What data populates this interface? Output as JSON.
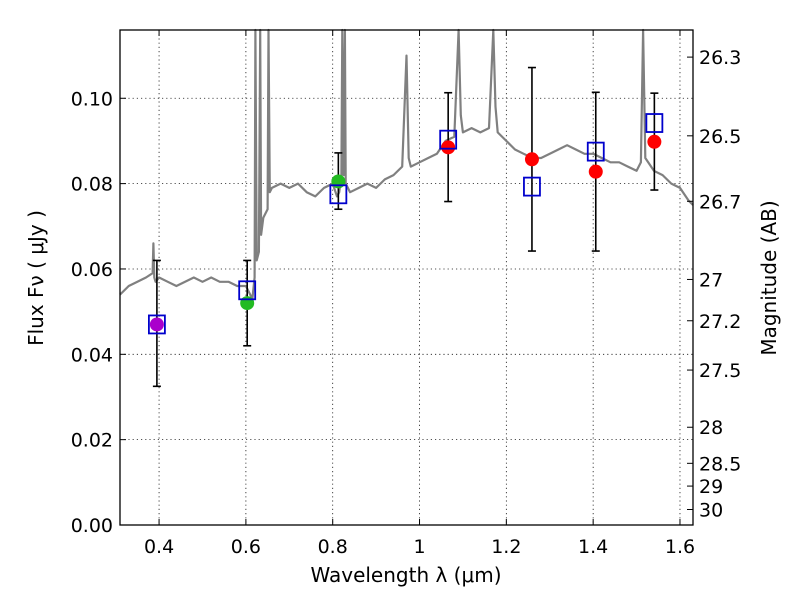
{
  "chart_data": {
    "type": "scatter",
    "title": "",
    "xlabel": "Wavelength  λ (μm)",
    "ylabel_left": "Flux  Fν  ( μJy )",
    "ylabel_right": "Magnitude (AB)",
    "xlim": [
      0.31,
      1.63
    ],
    "ylim": [
      0.0,
      0.116
    ],
    "grid": true,
    "x_ticks": [
      0.4,
      0.6,
      0.8,
      1.0,
      1.2,
      1.4,
      1.6
    ],
    "x_tick_labels": [
      "0.4",
      "0.6",
      "0.8",
      "1",
      "1.2",
      "1.4",
      "1.6"
    ],
    "y_ticks": [
      0.0,
      0.02,
      0.04,
      0.06,
      0.08,
      0.1
    ],
    "y_tick_labels": [
      "0.00",
      "0.02",
      "0.04",
      "0.06",
      "0.08",
      "0.10"
    ],
    "magnitude_ticks": [
      "26.3",
      "26.5",
      "26.7",
      "27",
      "27.2",
      "27.5",
      "28",
      "28.5",
      "29",
      "30"
    ],
    "model_spectrum": {
      "name": "model spectrum",
      "color": "#808080",
      "x": [
        0.31,
        0.33,
        0.35,
        0.37,
        0.385,
        0.387,
        0.389,
        0.392,
        0.4,
        0.42,
        0.44,
        0.46,
        0.48,
        0.5,
        0.52,
        0.54,
        0.56,
        0.58,
        0.6,
        0.61,
        0.615,
        0.62,
        0.622,
        0.625,
        0.63,
        0.633,
        0.635,
        0.64,
        0.65,
        0.652,
        0.655,
        0.66,
        0.68,
        0.7,
        0.72,
        0.74,
        0.76,
        0.78,
        0.8,
        0.81,
        0.815,
        0.82,
        0.822,
        0.825,
        0.828,
        0.83,
        0.84,
        0.86,
        0.88,
        0.9,
        0.92,
        0.94,
        0.96,
        0.97,
        0.975,
        0.98,
        1.0,
        1.02,
        1.04,
        1.06,
        1.08,
        1.09,
        1.095,
        1.1,
        1.12,
        1.14,
        1.16,
        1.17,
        1.175,
        1.18,
        1.2,
        1.22,
        1.24,
        1.26,
        1.28,
        1.3,
        1.32,
        1.34,
        1.36,
        1.38,
        1.4,
        1.42,
        1.44,
        1.46,
        1.48,
        1.5,
        1.51,
        1.515,
        1.52,
        1.54,
        1.56,
        1.58,
        1.6,
        1.62,
        1.63
      ],
      "y": [
        0.054,
        0.056,
        0.057,
        0.058,
        0.059,
        0.066,
        0.058,
        0.057,
        0.058,
        0.057,
        0.056,
        0.057,
        0.058,
        0.057,
        0.058,
        0.057,
        0.057,
        0.056,
        0.056,
        0.054,
        0.053,
        0.058,
        0.116,
        0.062,
        0.064,
        0.116,
        0.068,
        0.072,
        0.074,
        0.116,
        0.078,
        0.079,
        0.08,
        0.079,
        0.08,
        0.078,
        0.077,
        0.079,
        0.08,
        0.077,
        0.078,
        0.082,
        0.116,
        0.082,
        0.116,
        0.08,
        0.078,
        0.079,
        0.08,
        0.079,
        0.081,
        0.082,
        0.084,
        0.11,
        0.086,
        0.084,
        0.085,
        0.086,
        0.087,
        0.09,
        0.091,
        0.116,
        0.096,
        0.092,
        0.093,
        0.092,
        0.093,
        0.116,
        0.098,
        0.092,
        0.09,
        0.088,
        0.087,
        0.086,
        0.086,
        0.087,
        0.088,
        0.089,
        0.088,
        0.087,
        0.087,
        0.086,
        0.085,
        0.085,
        0.084,
        0.083,
        0.085,
        0.116,
        0.086,
        0.083,
        0.082,
        0.08,
        0.079,
        0.076,
        0.075
      ]
    },
    "filters": [
      {
        "x": 0.395,
        "observed": 0.047,
        "err_low": 0.0325,
        "err_high": 0.062,
        "model": 0.047,
        "color": "#aa00cc"
      },
      {
        "x": 0.603,
        "observed": 0.052,
        "err_low": 0.042,
        "err_high": 0.062,
        "model": 0.055,
        "color": "#22bb22"
      },
      {
        "x": 0.813,
        "observed": 0.0805,
        "err_low": 0.074,
        "err_high": 0.0872,
        "model": 0.0775,
        "color": "#22bb22"
      },
      {
        "x": 1.066,
        "observed": 0.0885,
        "err_low": 0.0758,
        "err_high": 0.1013,
        "model": 0.0903,
        "color": "#ff0000"
      },
      {
        "x": 1.259,
        "observed": 0.0857,
        "err_low": 0.0642,
        "err_high": 0.1072,
        "model": 0.0793,
        "color": "#ff0000"
      },
      {
        "x": 1.406,
        "observed": 0.0828,
        "err_low": 0.0642,
        "err_high": 0.1014,
        "model": 0.0875,
        "color": "#ff0000"
      },
      {
        "x": 1.541,
        "observed": 0.0898,
        "err_low": 0.0785,
        "err_high": 0.1012,
        "model": 0.0942,
        "color": "#ff0000"
      }
    ],
    "model_marker_color": "#0000cc"
  }
}
